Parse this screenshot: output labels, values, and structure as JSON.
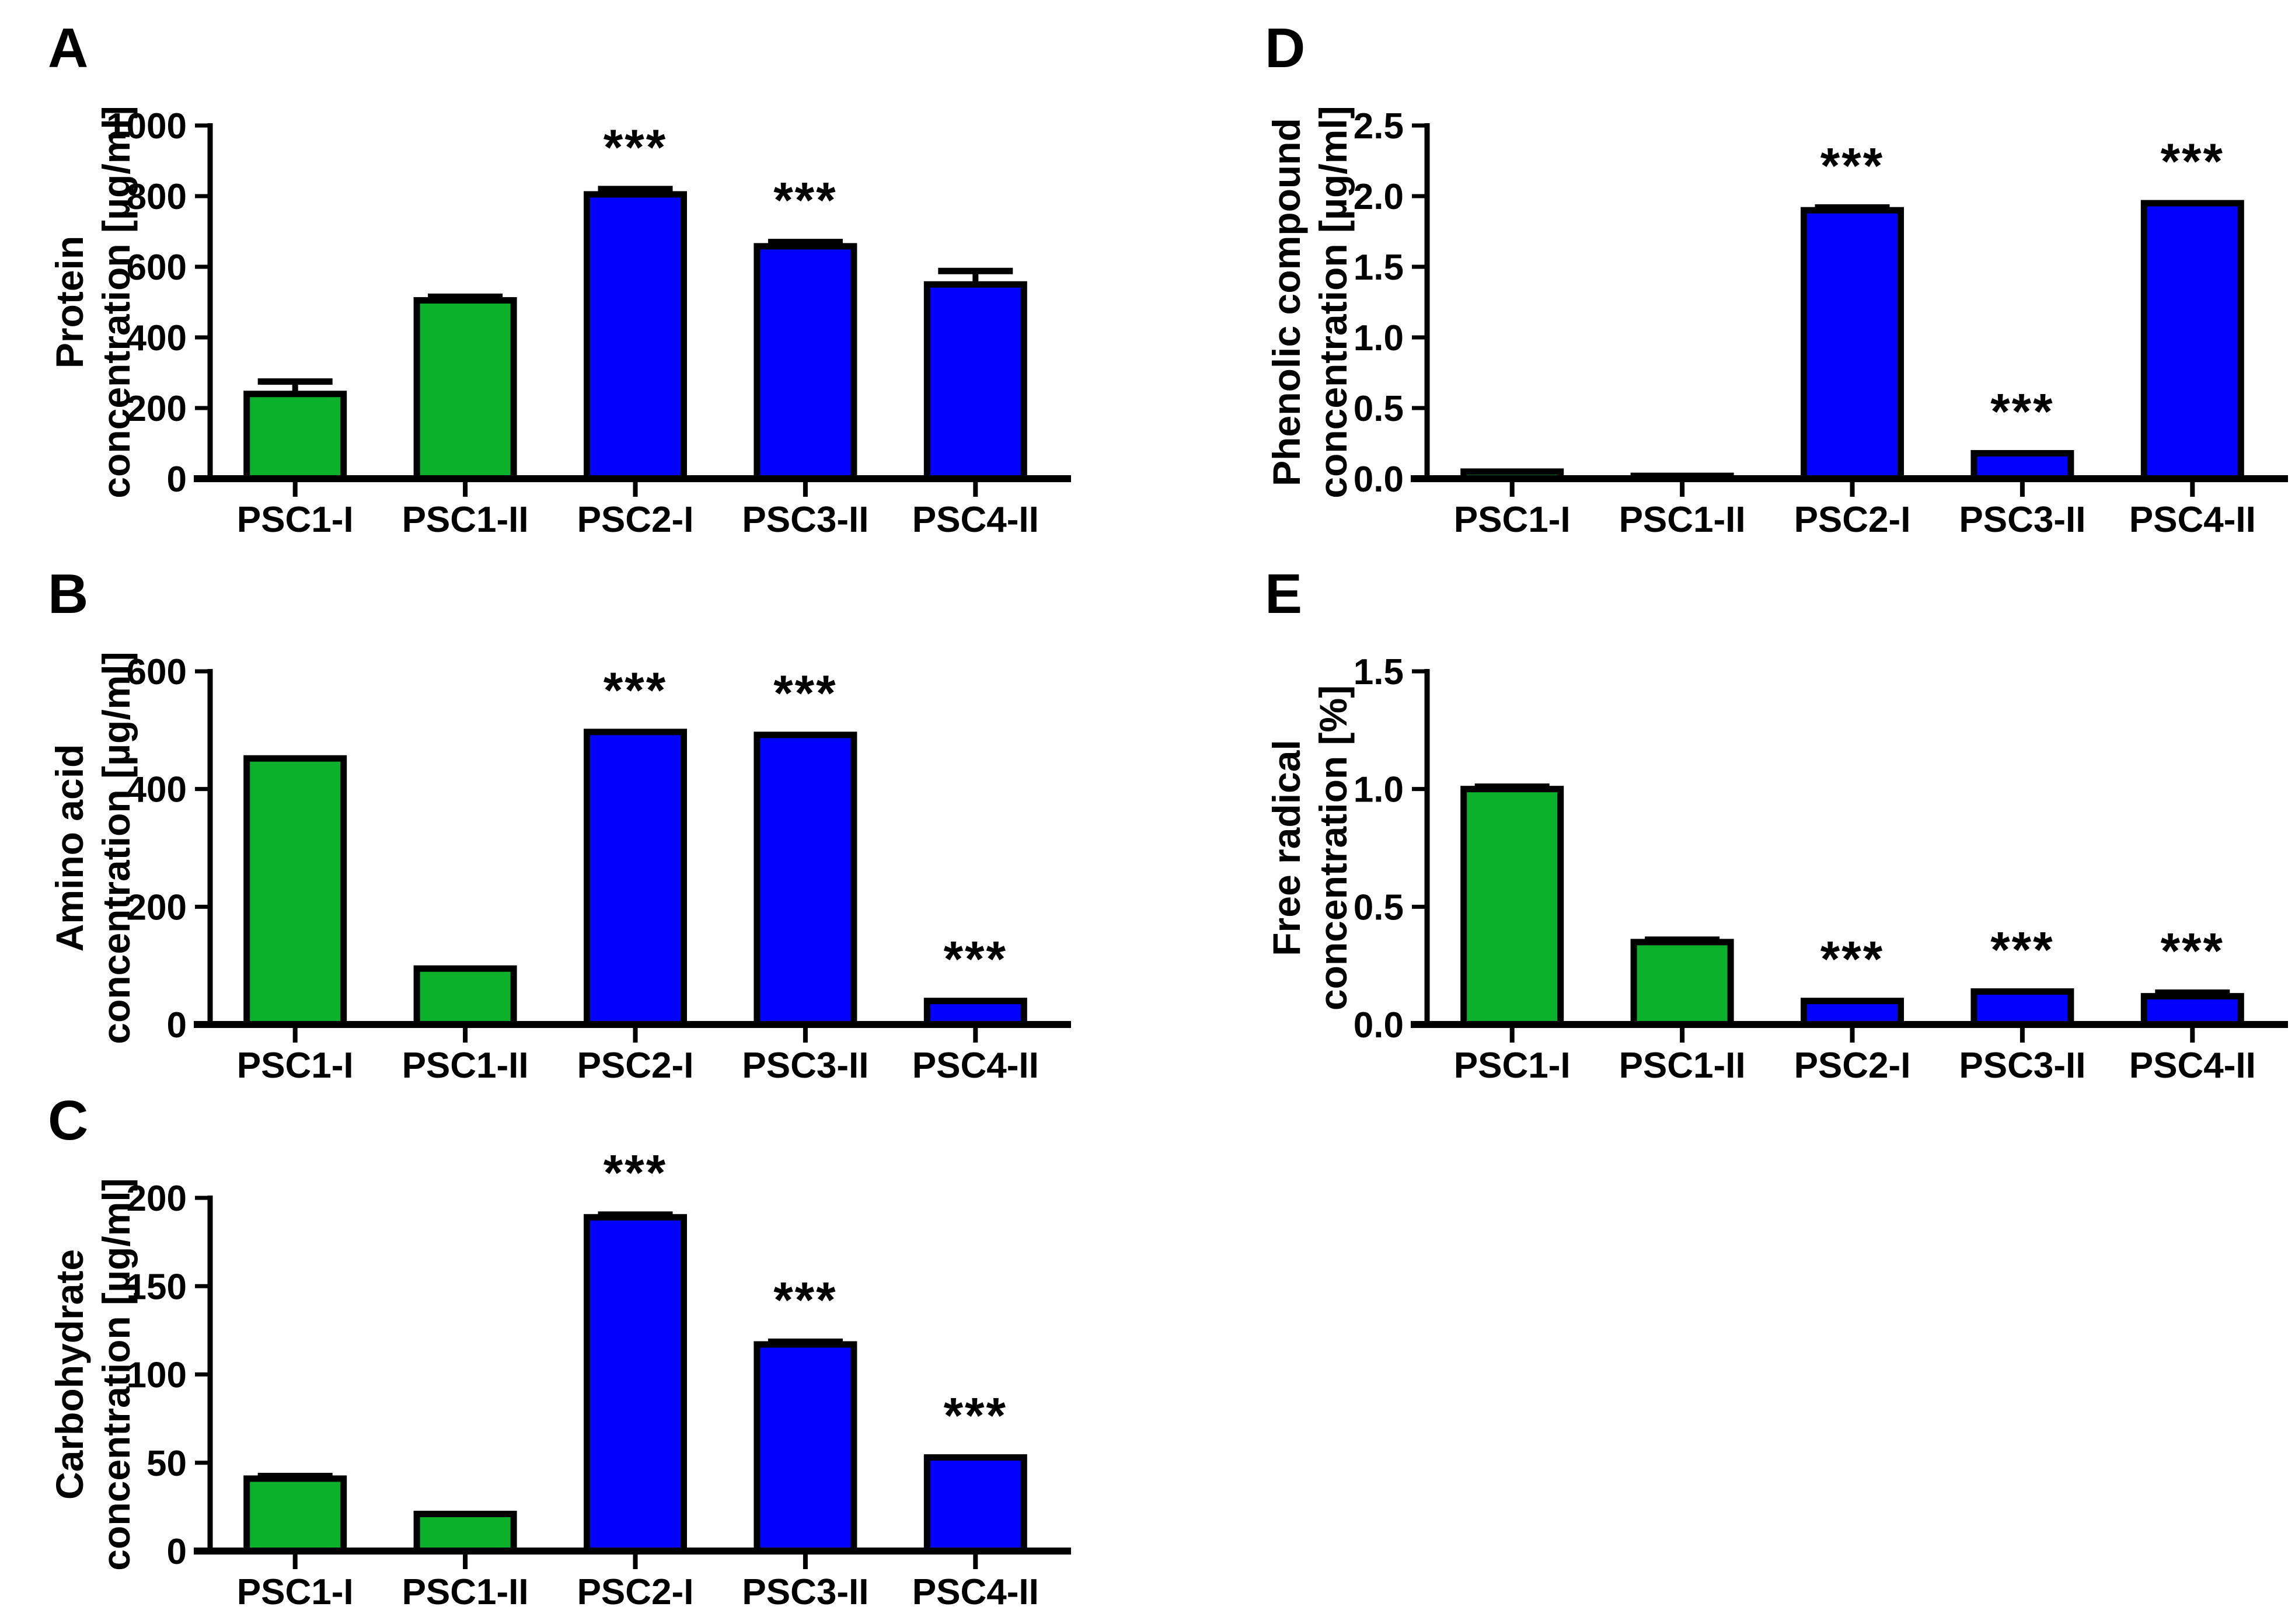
{
  "figure": {
    "background": "#FFFFFF",
    "panel_letters": [
      "A",
      "B",
      "C",
      "D",
      "E"
    ]
  },
  "colors": {
    "green": "#0BB02B",
    "blue": "#0201FD",
    "axis": "#000000",
    "text": "#000000"
  },
  "significance_marker": "***",
  "chart_data": [
    {
      "panel_label": "A",
      "type": "bar",
      "ylabel_lines": [
        "Protein",
        "concentration [µg/ml]"
      ],
      "ylim": [
        0,
        1000
      ],
      "ytick_values": [
        0,
        200,
        400,
        600,
        800,
        1000
      ],
      "ytick_labels": [
        "0",
        "200",
        "400",
        "600",
        "800",
        "1000"
      ],
      "categories": [
        "PSC1-I",
        "PSC1-II",
        "PSC2-I",
        "PSC3-II",
        "PSC4-II"
      ],
      "values": [
        240,
        505,
        805,
        658,
        550
      ],
      "errors": [
        35,
        10,
        15,
        12,
        38
      ],
      "significant": [
        false,
        false,
        true,
        true,
        false
      ],
      "bar_colors": [
        "green",
        "green",
        "blue",
        "blue",
        "blue"
      ]
    },
    {
      "panel_label": "B",
      "type": "bar",
      "ylabel_lines": [
        "Amino acid",
        "concentration [µg/ml]"
      ],
      "ylim": [
        0,
        600
      ],
      "ytick_values": [
        0,
        200,
        400,
        600
      ],
      "ytick_labels": [
        "0",
        "200",
        "400",
        "600"
      ],
      "categories": [
        "PSC1-I",
        "PSC1-II",
        "PSC2-I",
        "PSC3-II",
        "PSC4-II"
      ],
      "values": [
        452,
        95,
        497,
        492,
        40
      ],
      "errors": [
        0,
        0,
        0,
        0,
        0
      ],
      "significant": [
        false,
        false,
        true,
        true,
        true
      ],
      "bar_colors": [
        "green",
        "green",
        "blue",
        "blue",
        "blue"
      ]
    },
    {
      "panel_label": "C",
      "type": "bar",
      "ylabel_lines": [
        "Carbohydrate",
        "concentration [µg/ml]"
      ],
      "ylim": [
        0,
        200
      ],
      "ytick_values": [
        0,
        50,
        100,
        150,
        200
      ],
      "ytick_labels": [
        "0",
        "50",
        "100",
        "150",
        "200"
      ],
      "categories": [
        "PSC1-I",
        "PSC1-II",
        "PSC2-I",
        "PSC3-II",
        "PSC4-II"
      ],
      "values": [
        41,
        21,
        189,
        117,
        53
      ],
      "errors": [
        1.5,
        0,
        1.5,
        1.5,
        0
      ],
      "significant": [
        false,
        false,
        true,
        true,
        true
      ],
      "bar_colors": [
        "green",
        "green",
        "blue",
        "blue",
        "blue"
      ]
    },
    {
      "panel_label": "D",
      "type": "bar",
      "ylabel_lines": [
        "Phenolic compound",
        "concentration [µg/ml]"
      ],
      "ylim": [
        0,
        2.5
      ],
      "ytick_values": [
        0,
        0.5,
        1.0,
        1.5,
        2.0,
        2.5
      ],
      "ytick_labels": [
        "0.0",
        "0.5",
        "1.0",
        "1.5",
        "2.0",
        "2.5"
      ],
      "categories": [
        "PSC1-I",
        "PSC1-II",
        "PSC2-I",
        "PSC3-II",
        "PSC4-II"
      ],
      "values": [
        0.05,
        0.02,
        1.9,
        0.18,
        1.95
      ],
      "errors": [
        0,
        0,
        0.02,
        0,
        0
      ],
      "significant": [
        false,
        false,
        true,
        true,
        true
      ],
      "bar_colors": [
        "green",
        "green",
        "blue",
        "blue",
        "blue"
      ]
    },
    {
      "panel_label": "E",
      "type": "bar",
      "ylabel_lines": [
        "Free radical",
        "concentration [%]"
      ],
      "ylim": [
        0,
        1.5
      ],
      "ytick_values": [
        0,
        0.5,
        1.0,
        1.5
      ],
      "ytick_labels": [
        "0.0",
        "0.5",
        "1.0",
        "1.5"
      ],
      "categories": [
        "PSC1-I",
        "PSC1-II",
        "PSC2-I",
        "PSC3-II",
        "PSC4-II"
      ],
      "values": [
        1.0,
        0.35,
        0.1,
        0.14,
        0.12
      ],
      "errors": [
        0.01,
        0.01,
        0,
        0,
        0.015
      ],
      "significant": [
        false,
        false,
        true,
        true,
        true
      ],
      "bar_colors": [
        "green",
        "green",
        "blue",
        "blue",
        "blue"
      ]
    }
  ]
}
